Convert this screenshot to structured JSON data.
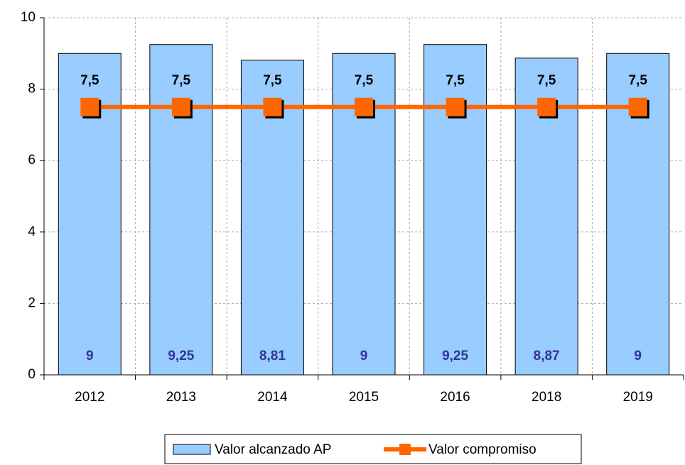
{
  "chart_data": {
    "type": "bar+line",
    "categories": [
      "2012",
      "2013",
      "2014",
      "2015",
      "2016",
      "2018",
      "2019"
    ],
    "series": [
      {
        "name": "Valor alcanzado AP",
        "type": "bar",
        "color": "#99ccff",
        "values": [
          9,
          9.25,
          8.81,
          9,
          9.25,
          8.87,
          9
        ],
        "value_labels": [
          "9",
          "9,25",
          "8,81",
          "9",
          "9,25",
          "8,87",
          "9"
        ],
        "label_color": "#333399"
      },
      {
        "name": "Valor compromiso",
        "type": "line",
        "color": "#ff6600",
        "values": [
          7.5,
          7.5,
          7.5,
          7.5,
          7.5,
          7.5,
          7.5
        ],
        "value_labels": [
          "7,5",
          "7,5",
          "7,5",
          "7,5",
          "7,5",
          "7,5",
          "7,5"
        ],
        "label_color": "#000000"
      }
    ],
    "ylim": [
      0,
      10
    ],
    "yticks": [
      0,
      2,
      4,
      6,
      8,
      10
    ],
    "grid": true,
    "legend": "bottom"
  }
}
